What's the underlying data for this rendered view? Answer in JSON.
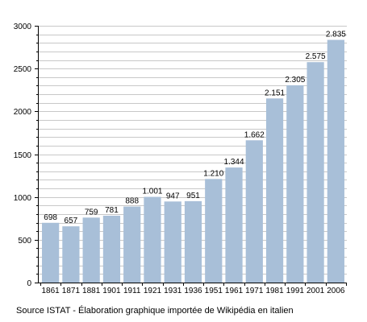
{
  "chart_data": {
    "type": "bar",
    "title": "",
    "xlabel": "",
    "ylabel": "",
    "categories": [
      "1861",
      "1871",
      "1881",
      "1901",
      "1911",
      "1921",
      "1931",
      "1936",
      "1951",
      "1961",
      "1971",
      "1981",
      "1991",
      "2001",
      "2006"
    ],
    "values": [
      698,
      657,
      759,
      781,
      888,
      1001,
      947,
      951,
      1210,
      1344,
      1662,
      2151,
      2305,
      2575,
      2835
    ],
    "value_labels": [
      "698",
      "657",
      "759",
      "781",
      "888",
      "1.001",
      "947",
      "951",
      "1.210",
      "1.344",
      "1.662",
      "2.151",
      "2.305",
      "2.575",
      "2.835"
    ],
    "ylim": [
      0,
      3000
    ],
    "yticks": [
      0,
      500,
      1000,
      1500,
      2000,
      2500,
      3000
    ],
    "grid": true,
    "legend": "none",
    "colors": {
      "bar": "#a8bfd8",
      "grid": "#c8c8c8",
      "axis": "#000000",
      "text": "#000000"
    }
  },
  "footer": {
    "source": "Source ISTAT - Élaboration graphique importée de Wikipédia en italien"
  }
}
